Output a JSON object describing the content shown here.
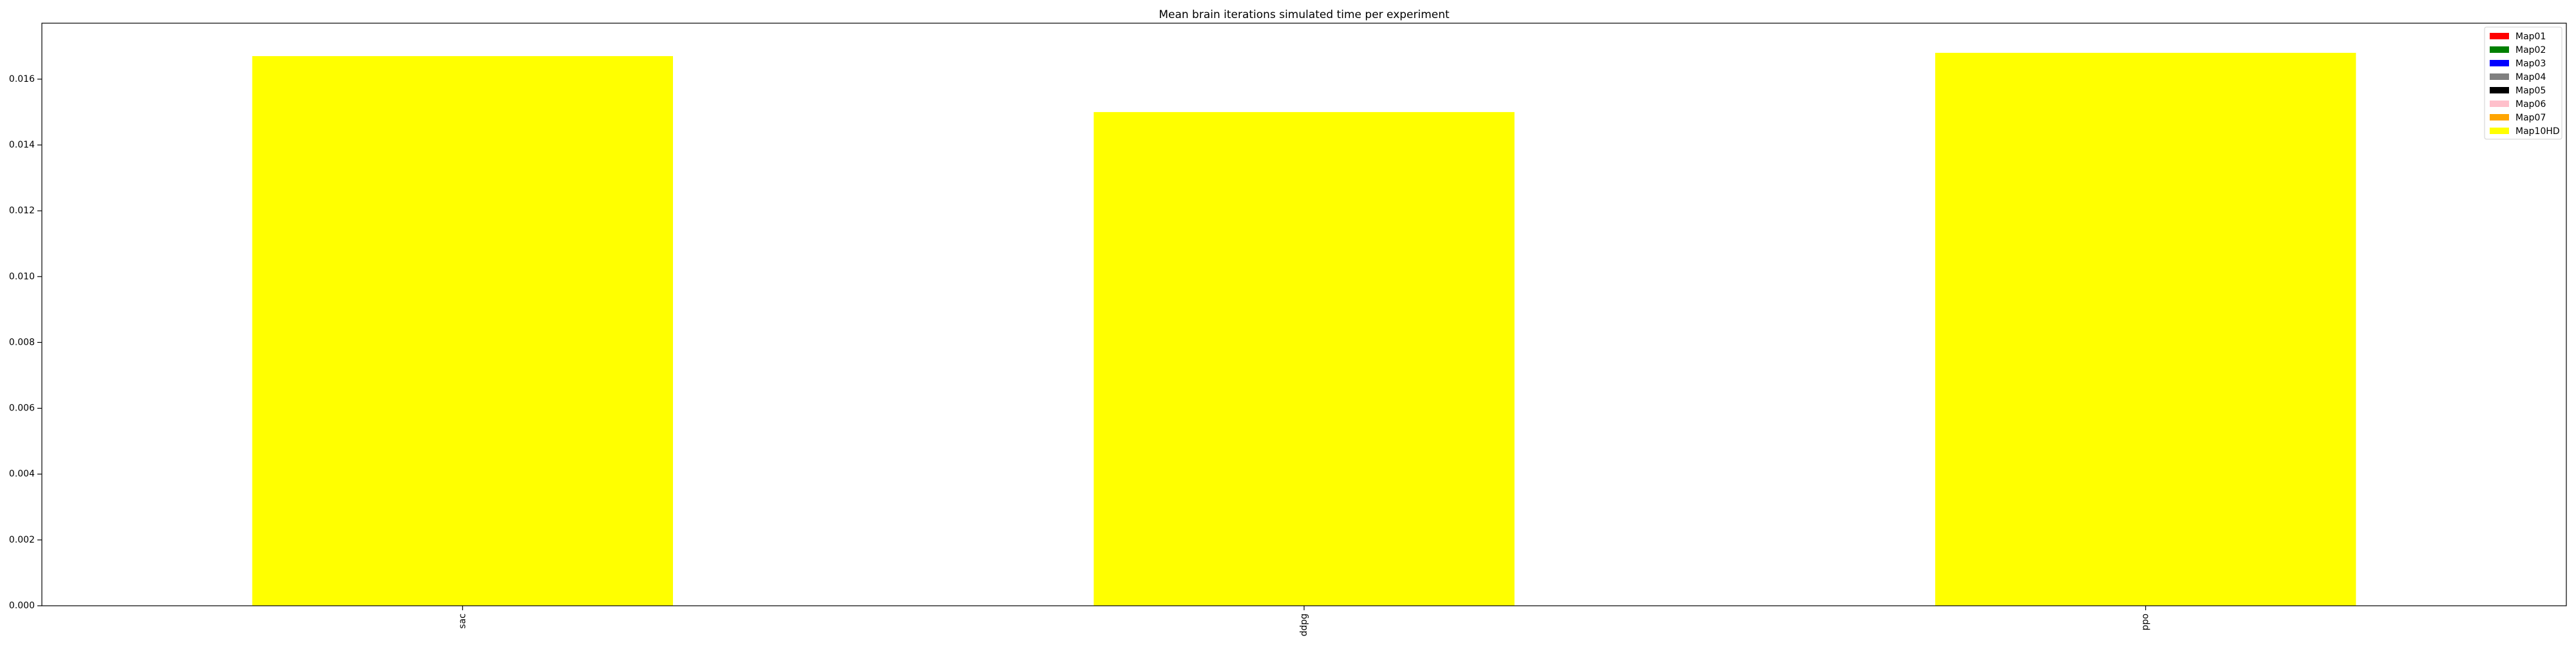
{
  "chart_data": {
    "type": "bar",
    "title": "Mean brain iterations simulated time per experiment",
    "xlabel": "",
    "ylabel": "",
    "categories": [
      "sac",
      "ddpg",
      "ppo"
    ],
    "series": [
      {
        "name": "Map01",
        "color": "#ff0000",
        "values": [
          0,
          0,
          0
        ]
      },
      {
        "name": "Map02",
        "color": "#008000",
        "values": [
          0,
          0,
          0
        ]
      },
      {
        "name": "Map03",
        "color": "#0000ff",
        "values": [
          0,
          0,
          0
        ]
      },
      {
        "name": "Map04",
        "color": "#808080",
        "values": [
          0,
          0,
          0
        ]
      },
      {
        "name": "Map05",
        "color": "#000000",
        "values": [
          0,
          0,
          0
        ]
      },
      {
        "name": "Map06",
        "color": "#ffc0cb",
        "values": [
          0,
          0,
          0
        ]
      },
      {
        "name": "Map07",
        "color": "#ffa500",
        "values": [
          0,
          0,
          0
        ]
      },
      {
        "name": "Map10HD",
        "color": "#ffff00",
        "values": [
          0.0167,
          0.015,
          0.0168
        ]
      }
    ],
    "ylim": [
      0,
      0.0177
    ],
    "yticks": [
      "0.000",
      "0.002",
      "0.004",
      "0.006",
      "0.008",
      "0.010",
      "0.012",
      "0.014",
      "0.016"
    ],
    "ytick_values": [
      0,
      0.002,
      0.004,
      0.006,
      0.008,
      0.01,
      0.012,
      0.014,
      0.016
    ],
    "legend_position": "top-right",
    "grid": false
  }
}
